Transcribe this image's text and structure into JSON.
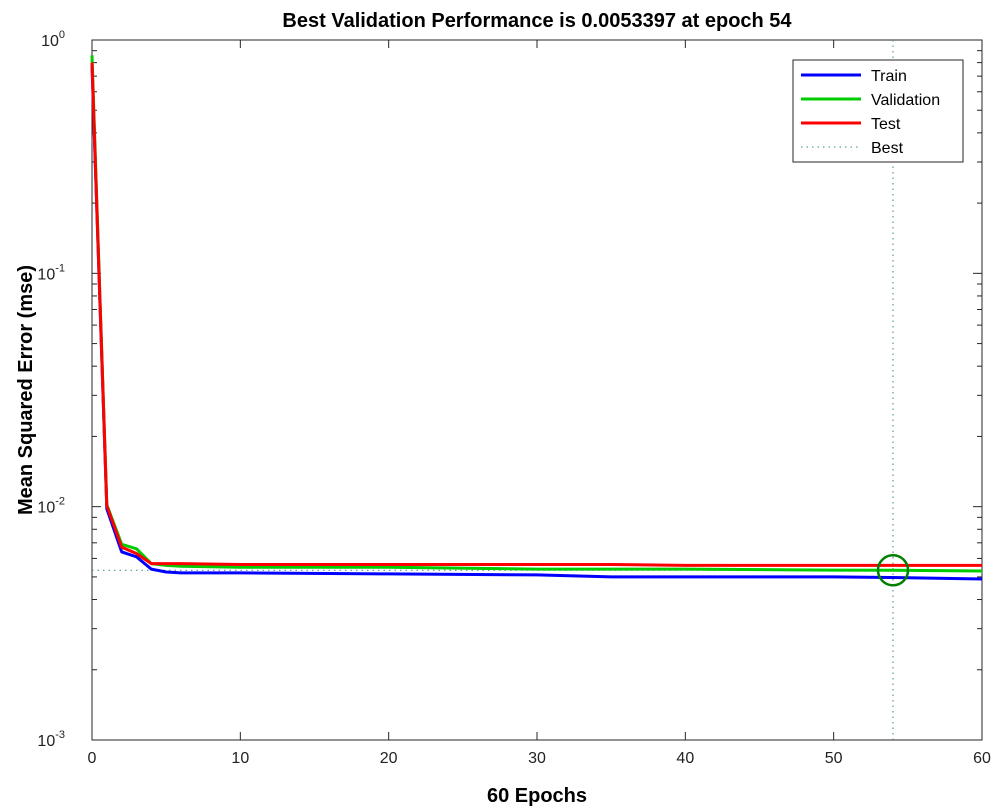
{
  "chart_data": {
    "type": "line",
    "title": "Best Validation Performance is 0.0053397 at epoch 54",
    "xlabel": "60 Epochs",
    "ylabel": "Mean Squared Error  (mse)",
    "xlim": [
      0,
      60
    ],
    "ylim": [
      0.001,
      1
    ],
    "yscale": "log",
    "xticks": [
      "0",
      "10",
      "20",
      "30",
      "40",
      "50",
      "60"
    ],
    "yticks": [
      {
        "base": "10",
        "exp": "0"
      },
      {
        "base": "10",
        "exp": "-1"
      },
      {
        "base": "10",
        "exp": "-2"
      },
      {
        "base": "10",
        "exp": "-3"
      }
    ],
    "grid": false,
    "legend_position": "top-right",
    "series": [
      {
        "name": "Train",
        "color": "#0000ff",
        "x": [
          0,
          1,
          2,
          3,
          4,
          5,
          6,
          10,
          20,
          30,
          35,
          40,
          50,
          54,
          60
        ],
        "y": [
          0.78,
          0.0098,
          0.0064,
          0.0061,
          0.0054,
          0.00525,
          0.0052,
          0.0052,
          0.00515,
          0.0051,
          0.005,
          0.005,
          0.005,
          0.00497,
          0.0049
        ]
      },
      {
        "name": "Validation",
        "color": "#00cc00",
        "x": [
          0,
          1,
          2,
          3,
          4,
          5,
          6,
          10,
          20,
          30,
          35,
          40,
          50,
          54,
          60
        ],
        "y": [
          0.86,
          0.0102,
          0.0069,
          0.0066,
          0.0057,
          0.0056,
          0.00555,
          0.0055,
          0.0055,
          0.0054,
          0.0054,
          0.0054,
          0.00535,
          0.0053397,
          0.0053
        ]
      },
      {
        "name": "Test",
        "color": "#ff0000",
        "x": [
          0,
          1,
          2,
          3,
          4,
          5,
          6,
          10,
          20,
          30,
          35,
          40,
          50,
          54,
          60
        ],
        "y": [
          0.8,
          0.0101,
          0.0067,
          0.0063,
          0.0057,
          0.0057,
          0.0057,
          0.00565,
          0.00565,
          0.00565,
          0.00565,
          0.0056,
          0.0056,
          0.0056,
          0.0056
        ]
      }
    ],
    "best": {
      "name": "Best",
      "epoch": 54,
      "value": 0.0053397,
      "line_color": "#3a8a8a",
      "marker_color": "#008000"
    }
  }
}
